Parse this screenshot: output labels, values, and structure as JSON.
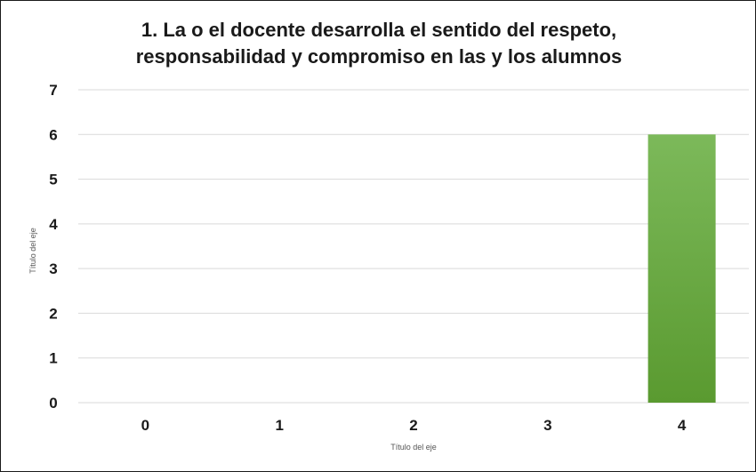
{
  "chart_data": {
    "type": "bar",
    "title": [
      "1. La o el docente desarrolla el sentido del respeto,",
      "responsabilidad y compromiso en las y los alumnos"
    ],
    "xlabel": "Título del eje",
    "ylabel": "Título del eje",
    "categories": [
      "0",
      "1",
      "2",
      "3",
      "4"
    ],
    "values": [
      0,
      0,
      0,
      0,
      6
    ],
    "ylim": [
      0,
      7
    ],
    "yticks": [
      "0",
      "1",
      "2",
      "3",
      "4",
      "5",
      "6",
      "7"
    ],
    "grid": true,
    "legend": "none",
    "bar_color": "#6aae3f",
    "bar_color_top": "#7cb95a",
    "bar_color_bottom": "#5a9a30",
    "grid_color": "#d9d9d9"
  }
}
